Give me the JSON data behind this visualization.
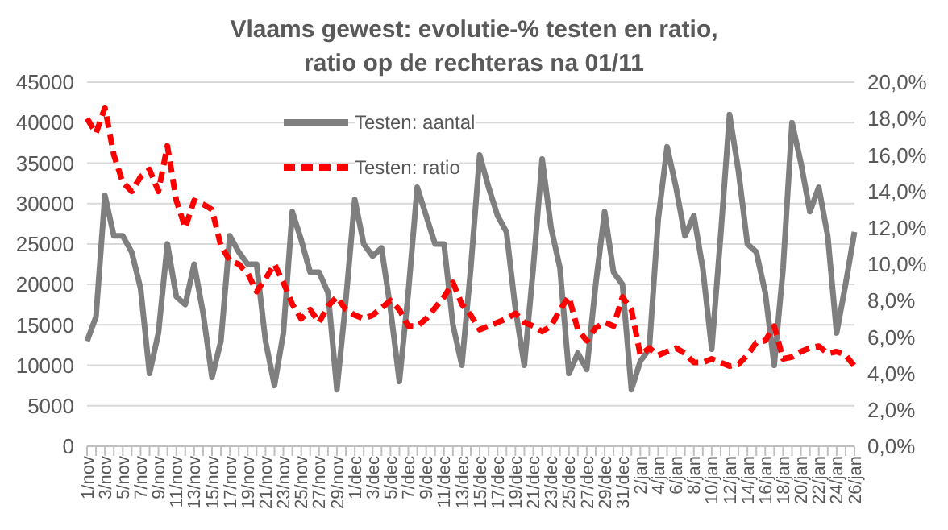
{
  "chart_data": {
    "type": "line",
    "title": "Vlaams gewest: evolutie-% testen en ratio,\nratio op de rechteras na 01/11",
    "categories": [
      "1/nov",
      null,
      "3/nov",
      null,
      "5/nov",
      null,
      "7/nov",
      null,
      "9/nov",
      null,
      "11/nov",
      null,
      "13/nov",
      null,
      "15/nov",
      null,
      "17/nov",
      null,
      "19/nov",
      null,
      "21/nov",
      null,
      "23/nov",
      null,
      "25/nov",
      null,
      "27/nov",
      null,
      "29/nov",
      null,
      "1/dec",
      null,
      "3/dec",
      null,
      "5/dec",
      null,
      "7/dec",
      null,
      "9/dec",
      null,
      "11/dec",
      null,
      "13/dec",
      null,
      "15/dec",
      null,
      "17/dec",
      null,
      "19/dec",
      null,
      "21/dec",
      null,
      "23/dec",
      null,
      "25/dec",
      null,
      "27/dec",
      null,
      "29/dec",
      null,
      "31/dec",
      null,
      "2/jan",
      null,
      "4/jan",
      null,
      "6/jan",
      null,
      "8/jan",
      null,
      "10/jan",
      null,
      "12/jan",
      null,
      "14/jan",
      null,
      "16/jan",
      null,
      "18/jan",
      null,
      "20/jan",
      null,
      "22/jan",
      null,
      "24/jan",
      null,
      "26/jan"
    ],
    "series": [
      {
        "name": "Testen: aantal",
        "color": "#7f7f7f",
        "line_style": "solid",
        "values": [
          13000,
          16000,
          31000,
          26000,
          26000,
          24000,
          19500,
          9000,
          14000,
          25000,
          18500,
          17500,
          22500,
          16500,
          8500,
          13000,
          26000,
          24000,
          22500,
          22500,
          13000,
          7500,
          14000,
          29000,
          25500,
          21500,
          21500,
          19000,
          7000,
          18000,
          30500,
          25000,
          23500,
          24500,
          17000,
          8000,
          19000,
          32000,
          28500,
          25000,
          25000,
          15000,
          10000,
          22000,
          36000,
          32000,
          28500,
          26500,
          17000,
          10000,
          22000,
          35500,
          27000,
          22000,
          9000,
          11500,
          9500,
          20000,
          29000,
          21500,
          20000,
          7000,
          10500,
          12000,
          28000,
          37000,
          32000,
          26000,
          28500,
          22000,
          12000,
          26000,
          41000,
          34000,
          25000,
          24000,
          19000,
          10000,
          22000,
          40000,
          35000,
          29000,
          32000,
          26000,
          14000,
          20000,
          26500
        ]
      },
      {
        "name": "Testen: ratio",
        "color": "#ff0000",
        "line_style": "dashed",
        "axis": "y2",
        "values": [
          18.0,
          17.2,
          18.6,
          16.0,
          14.5,
          14.0,
          14.8,
          15.2,
          14.0,
          16.5,
          13.5,
          12.0,
          13.5,
          13.3,
          13.0,
          11.0,
          10.2,
          10.0,
          9.5,
          8.5,
          9.2,
          10.0,
          9.0,
          7.8,
          7.0,
          7.5,
          6.8,
          7.7,
          8.2,
          7.5,
          7.2,
          7.0,
          7.2,
          7.6,
          8.0,
          7.5,
          6.6,
          6.6,
          7.0,
          7.6,
          8.2,
          9.0,
          7.8,
          7.2,
          6.4,
          6.6,
          6.8,
          7.0,
          7.3,
          6.8,
          6.6,
          6.3,
          6.6,
          7.5,
          8.2,
          6.4,
          5.8,
          6.5,
          6.8,
          6.6,
          8.2,
          7.5,
          5.0,
          5.4,
          5.0,
          5.2,
          5.4,
          5.1,
          4.6,
          4.6,
          4.8,
          4.6,
          4.4,
          4.5,
          5.0,
          5.7,
          5.8,
          6.6,
          4.8,
          4.9,
          5.2,
          5.4,
          5.5,
          5.1,
          5.2,
          5.0,
          4.4
        ]
      }
    ],
    "ylim": [
      0,
      45000
    ],
    "yticks": [
      0,
      5000,
      10000,
      15000,
      20000,
      25000,
      30000,
      35000,
      40000,
      45000
    ],
    "y2lim": [
      0,
      20
    ],
    "y2ticks": [
      {
        "value": 0,
        "label": "0,0%"
      },
      {
        "value": 2,
        "label": "2,0%"
      },
      {
        "value": 4,
        "label": "4,0%"
      },
      {
        "value": 6,
        "label": "6,0%"
      },
      {
        "value": 8,
        "label": "8,0%"
      },
      {
        "value": 10,
        "label": "10,0%"
      },
      {
        "value": 12,
        "label": "12,0%"
      },
      {
        "value": 14,
        "label": "14,0%"
      },
      {
        "value": 16,
        "label": "16,0%"
      },
      {
        "value": 18,
        "label": "18,0%"
      },
      {
        "value": 20,
        "label": "20,0%"
      }
    ],
    "grid": "y",
    "legend": "top",
    "marker": "none"
  }
}
